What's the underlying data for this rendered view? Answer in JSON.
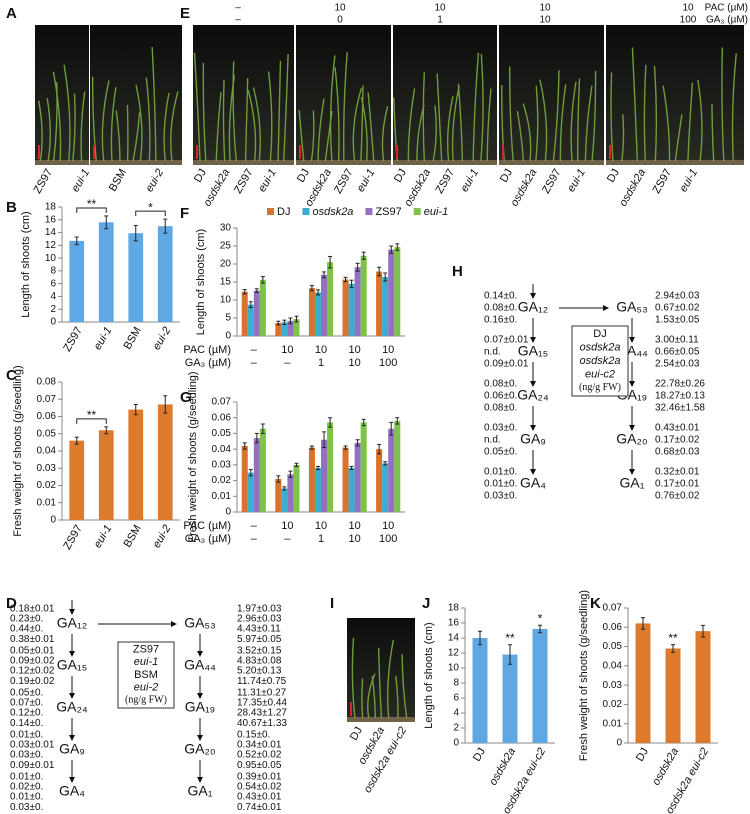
{
  "panel_labels": [
    "A",
    "B",
    "C",
    "D",
    "E",
    "F",
    "G",
    "H",
    "I",
    "J",
    "K"
  ],
  "photo_A": {
    "labels": [
      "ZS97",
      "eui-1",
      "BSM",
      "eui-2"
    ],
    "italic": [
      false,
      true,
      false,
      true
    ]
  },
  "photo_E": {
    "row_labels": [
      "PAC (µM)",
      "GA₃ (µM)"
    ],
    "rows": [
      [
        "–",
        "10",
        "10",
        "10",
        "10"
      ],
      [
        "–",
        "0",
        "1",
        "10",
        "100"
      ]
    ],
    "groups": [
      [
        "DJ",
        "osdsk2a",
        "ZS97",
        "eui-1"
      ],
      [
        "DJ",
        "osdsk2a",
        "ZS97",
        "eui-1"
      ],
      [
        "DJ",
        "osdsk2a",
        "ZS97",
        "eui-1"
      ],
      [
        "DJ",
        "osdsk2a",
        "ZS97",
        "eui-1"
      ],
      [
        "DJ",
        "osdsk2a",
        "ZS97",
        "eui-1"
      ]
    ],
    "italic": [
      false,
      true,
      false,
      true
    ]
  },
  "photo_I": {
    "labels": [
      "DJ",
      "osdsk2a",
      "osdsk2a eui-c2"
    ],
    "italic": [
      false,
      true,
      true
    ]
  },
  "chart_data": [
    {
      "type": "bar",
      "ylabel": "Length of shoots (cm)",
      "categories": [
        "ZS97",
        "eui-1",
        "BSM",
        "eui-2"
      ],
      "category_italic": [
        false,
        true,
        false,
        true
      ],
      "series": [
        {
          "color": "#5fa8e3",
          "values": [
            12.7,
            15.6,
            13.9,
            15.0
          ],
          "errors": [
            0.6,
            1.0,
            1.2,
            1.1
          ]
        }
      ],
      "ylim": [
        0,
        18
      ],
      "yticks": [
        0,
        2,
        4,
        6,
        8,
        10,
        12,
        14,
        16,
        18
      ],
      "annotations": [
        {
          "text": "**",
          "between": [
            0,
            1
          ]
        },
        {
          "text": "*",
          "between": [
            2,
            3
          ]
        }
      ]
    },
    {
      "type": "bar",
      "ylabel": "Fresh weight of shoots (g/seedling)",
      "categories": [
        "ZS97",
        "eui-1",
        "BSM",
        "eui-2"
      ],
      "category_italic": [
        false,
        true,
        false,
        true
      ],
      "series": [
        {
          "color": "#dd7a2c",
          "values": [
            0.046,
            0.052,
            0.064,
            0.067
          ],
          "errors": [
            0.002,
            0.002,
            0.003,
            0.005
          ]
        }
      ],
      "ylim": [
        0,
        0.08
      ],
      "yticks": [
        0,
        0.01,
        0.02,
        0.03,
        0.04,
        0.05,
        0.06,
        0.07,
        0.08
      ],
      "annotations": [
        {
          "text": "**",
          "between": [
            0,
            1
          ]
        }
      ]
    },
    {
      "type": "bar",
      "ylabel": "Length of shoots (cm)",
      "legend": true,
      "series": [
        {
          "name": "DJ",
          "italic": false,
          "color": "#d9722a",
          "values": [
            12.3,
            3.6,
            13.3,
            15.7,
            17.9
          ],
          "errors": [
            0.6,
            0.5,
            0.7,
            0.6,
            1.2
          ]
        },
        {
          "name": "osdsk2a",
          "italic": true,
          "color": "#3aaed1",
          "values": [
            8.7,
            3.8,
            12.1,
            14.5,
            16.4
          ],
          "errors": [
            0.8,
            0.6,
            0.7,
            1.0,
            1.1
          ]
        },
        {
          "name": "ZS97",
          "italic": false,
          "color": "#9470c2",
          "values": [
            12.6,
            4.2,
            17.0,
            19.1,
            24.0
          ],
          "errors": [
            0.5,
            0.8,
            0.8,
            1.1,
            1.0
          ]
        },
        {
          "name": "eui-1",
          "italic": true,
          "color": "#7dc24a",
          "values": [
            15.6,
            4.7,
            20.5,
            22.3,
            24.7
          ],
          "errors": [
            0.9,
            0.8,
            1.6,
            1.0,
            0.9
          ]
        }
      ],
      "condition_rows": [
        {
          "label": "PAC (µM)",
          "values": [
            "–",
            "10",
            "10",
            "10",
            "10"
          ]
        },
        {
          "label": "GA₃ (µM)",
          "values": [
            "–",
            "–",
            "1",
            "10",
            "100"
          ]
        }
      ],
      "ylim": [
        0,
        30
      ],
      "yticks": [
        0,
        5,
        10,
        15,
        20,
        25,
        30
      ]
    },
    {
      "type": "bar",
      "ylabel": "Fresh weight of shoots (g/seedling)",
      "series": [
        {
          "color": "#d9722a",
          "values": [
            0.042,
            0.021,
            0.041,
            0.041,
            0.04
          ],
          "errors": [
            0.002,
            0.002,
            0.001,
            0.001,
            0.003
          ]
        },
        {
          "color": "#3aaed1",
          "values": [
            0.025,
            0.015,
            0.028,
            0.028,
            0.031
          ],
          "errors": [
            0.002,
            0.001,
            0.001,
            0.001,
            0.001
          ]
        },
        {
          "color": "#9470c2",
          "values": [
            0.047,
            0.024,
            0.046,
            0.044,
            0.053
          ],
          "errors": [
            0.003,
            0.002,
            0.005,
            0.002,
            0.004
          ]
        },
        {
          "color": "#7dc24a",
          "values": [
            0.053,
            0.03,
            0.057,
            0.057,
            0.058
          ],
          "errors": [
            0.003,
            0.001,
            0.003,
            0.002,
            0.002
          ]
        }
      ],
      "condition_rows": [
        {
          "label": "PAC (µM)",
          "values": [
            "–",
            "10",
            "10",
            "10",
            "10"
          ]
        },
        {
          "label": "GA₃ (µM)",
          "values": [
            "–",
            "–",
            "1",
            "10",
            "100"
          ]
        }
      ],
      "ylim": [
        0,
        0.07
      ],
      "yticks": [
        0,
        0.01,
        0.02,
        0.03,
        0.04,
        0.05,
        0.06,
        0.07
      ]
    },
    {
      "type": "bar",
      "ylabel": "Length of shoots (cm)",
      "categories": [
        "DJ",
        "osdsk2a",
        "osdsk2a eui-c2"
      ],
      "category_italic": [
        false,
        true,
        true
      ],
      "series": [
        {
          "color": "#5fa8e3",
          "values": [
            14.0,
            11.8,
            15.2
          ],
          "errors": [
            0.9,
            1.3,
            0.5
          ]
        }
      ],
      "value_annotations": [
        null,
        "**",
        "*"
      ],
      "ylim": [
        0,
        18
      ],
      "yticks": [
        0,
        2,
        4,
        6,
        8,
        10,
        12,
        14,
        16,
        18
      ]
    },
    {
      "type": "bar",
      "ylabel": "Fresh weight of shoots (g/seedling)",
      "categories": [
        "DJ",
        "osdsk2a",
        "osdsk2a eui-c2"
      ],
      "category_italic": [
        false,
        true,
        true
      ],
      "series": [
        {
          "color": "#dd7a2c",
          "values": [
            0.062,
            0.049,
            0.058
          ],
          "errors": [
            0.003,
            0.002,
            0.003
          ]
        }
      ],
      "value_annotations": [
        null,
        "**",
        null
      ],
      "ylim": [
        0,
        0.07
      ],
      "yticks": [
        0,
        0.01,
        0.02,
        0.03,
        0.04,
        0.05,
        0.06,
        0.07
      ]
    }
  ],
  "pathway_D": {
    "colors": [
      "#1fb3df",
      "#d21fc8",
      "#1fb3df",
      "#d21fc8"
    ],
    "legend": [
      {
        "text": "ZS97",
        "color": "#1fb3df",
        "italic": false
      },
      {
        "text": "eui-1",
        "color": "#d21fc8",
        "italic": true
      },
      {
        "text": "BSM",
        "color": "#1fb3df",
        "italic": false
      },
      {
        "text": "eui-2",
        "color": "#d21fc8",
        "italic": true
      }
    ],
    "units": "(ng/g FW)",
    "left": [
      {
        "node": "GA₁₂",
        "values": [
          "0.18±0.01",
          "0.23±0.",
          "0.44±0.",
          "0.38±0.01"
        ]
      },
      {
        "node": "GA₁₅",
        "values": [
          "0.05±0.01",
          "0.09±0.02",
          "0.12±0.02",
          "0.19±0.02"
        ]
      },
      {
        "node": "GA₂₄",
        "values": [
          "0.05±0.",
          "0.07±0.",
          "0.12±0.",
          "0.14±0."
        ]
      },
      {
        "node": "GA₉",
        "values": [
          "0.01±0.",
          "0.03±0.01",
          "0.03±0.",
          "0.09±0.01"
        ]
      },
      {
        "node": "GA₄",
        "values": [
          "0.01±0.",
          "0.02±0.",
          "0.01±0.",
          "0.03±0."
        ]
      }
    ],
    "right": [
      {
        "node": "GA₅₃",
        "values": [
          "1.97±0.03",
          "2.96±0.03",
          "4.43±0.11",
          "5.97±0.05"
        ]
      },
      {
        "node": "GA₄₄",
        "values": [
          "3.52±0.15",
          "4.83±0.08",
          "5.20±0.13",
          "11.74±0.75"
        ]
      },
      {
        "node": "GA₁₉",
        "values": [
          "11.31±0.27",
          "17.35±0.44",
          "28.43±1.27",
          "40.67±1.33"
        ]
      },
      {
        "node": "GA₂₀",
        "values": [
          "0.15±0.",
          "0.34±0.01",
          "0.52±0.02",
          "0.95±0.05"
        ]
      },
      {
        "node": "GA₁",
        "values": [
          "0.39±0.01",
          "0.54±0.02",
          "0.43±0.01",
          "0.74±0.01"
        ]
      }
    ]
  },
  "pathway_H": {
    "colors": [
      "#d9722a",
      "#2aa3bc",
      "#7d2f92"
    ],
    "legend": [
      {
        "text": "DJ",
        "color": "#d9722a",
        "italic": false
      },
      {
        "text": "osdsk2a",
        "color": "#2aa3bc",
        "italic": true
      },
      {
        "text": "osdsk2a",
        "color": "#7d2f92",
        "italic": true
      },
      {
        "text": "eui-c2",
        "color": "#7d2f92",
        "italic": true
      }
    ],
    "units": "(ng/g FW)",
    "left": [
      {
        "node": "GA₁₂",
        "values": [
          "0.14±0.",
          "0.08±0.",
          "0.16±0."
        ]
      },
      {
        "node": "GA₁₅",
        "values": [
          "0.07±0.01",
          "n.d.",
          "0.09±0.01"
        ]
      },
      {
        "node": "GA₂₄",
        "values": [
          "0.08±0.",
          "0.06±0.",
          "0.08±0."
        ]
      },
      {
        "node": "GA₉",
        "values": [
          "0.03±0.",
          "n.d.",
          "0.05±0."
        ]
      },
      {
        "node": "GA₄",
        "values": [
          "0.01±0.",
          "0.01±0.",
          "0.03±0."
        ]
      }
    ],
    "right": [
      {
        "node": "GA₅₃",
        "values": [
          "2.94±0.03",
          "0.67±0.02",
          "1.53±0.05"
        ]
      },
      {
        "node": "GA₄₄",
        "values": [
          "3.00±0.11",
          "0.66±0.05",
          "2.54±0.03"
        ]
      },
      {
        "node": "GA₁₉",
        "values": [
          "22.78±0.26",
          "18.27±0.13",
          "32.46±1.58"
        ]
      },
      {
        "node": "GA₂₀",
        "values": [
          "0.43±0.01",
          "0.17±0.02",
          "0.68±0.03"
        ]
      },
      {
        "node": "GA₁",
        "values": [
          "0.32±0.01",
          "0.17±0.01",
          "0.76±0.02"
        ]
      }
    ]
  }
}
